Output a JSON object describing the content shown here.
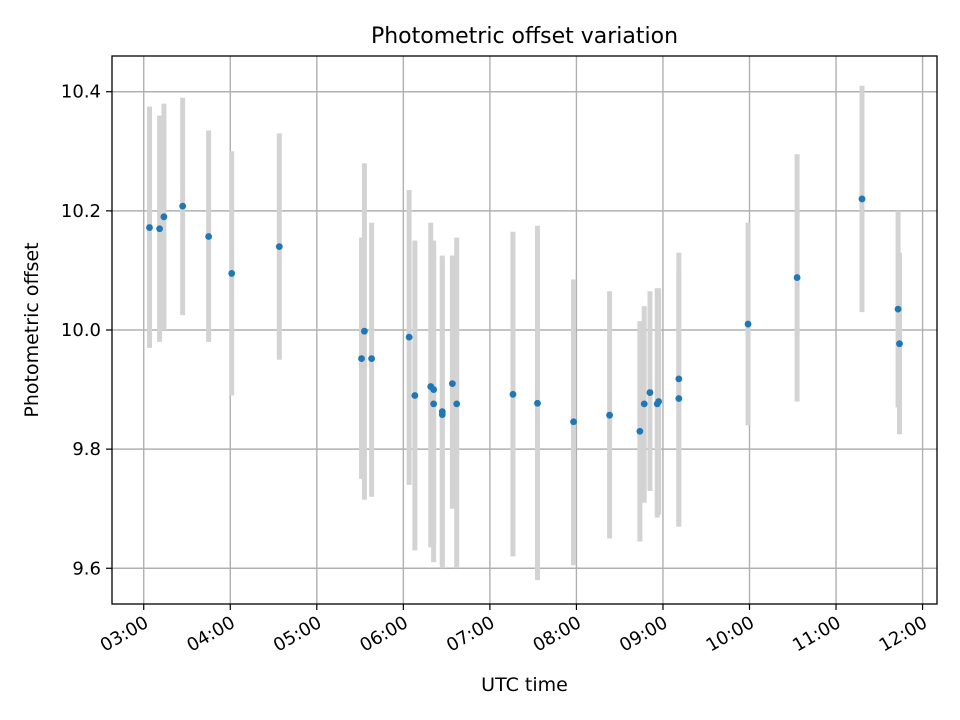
{
  "chart_data": {
    "type": "scatter",
    "title": "Photometric offset variation",
    "xlabel": "UTC time",
    "ylabel": "Photometric offset",
    "xlim": [
      "02:38",
      "12:10"
    ],
    "ylim": [
      9.54,
      10.46
    ],
    "x_ticks": [
      "03:00",
      "04:00",
      "05:00",
      "06:00",
      "07:00",
      "08:00",
      "09:00",
      "10:00",
      "11:00",
      "12:00"
    ],
    "y_ticks": [
      9.6,
      9.8,
      10.0,
      10.2,
      10.4
    ],
    "y_tick_labels": [
      "9.6",
      "9.8",
      "10.0",
      "10.2",
      "10.4"
    ],
    "grid": true,
    "colors": {
      "point": "#1f77b4",
      "errorbar": "#d3d3d3",
      "grid": "#b0b0b0"
    },
    "points": [
      {
        "time": "03:04",
        "y": 10.172,
        "lo": 9.97,
        "hi": 10.375
      },
      {
        "time": "03:11",
        "y": 10.17,
        "lo": 9.98,
        "hi": 10.36
      },
      {
        "time": "03:14",
        "y": 10.19,
        "lo": 10.0,
        "hi": 10.38
      },
      {
        "time": "03:27",
        "y": 10.208,
        "lo": 10.025,
        "hi": 10.39
      },
      {
        "time": "03:45",
        "y": 10.157,
        "lo": 9.98,
        "hi": 10.335
      },
      {
        "time": "04:01",
        "y": 10.095,
        "lo": 9.89,
        "hi": 10.3
      },
      {
        "time": "04:34",
        "y": 10.14,
        "lo": 9.95,
        "hi": 10.33
      },
      {
        "time": "05:31",
        "y": 9.952,
        "lo": 9.75,
        "hi": 10.155
      },
      {
        "time": "05:33",
        "y": 9.998,
        "lo": 9.715,
        "hi": 10.28
      },
      {
        "time": "05:38",
        "y": 9.952,
        "lo": 9.72,
        "hi": 10.18
      },
      {
        "time": "06:04",
        "y": 9.988,
        "lo": 9.74,
        "hi": 10.235
      },
      {
        "time": "06:08",
        "y": 9.89,
        "lo": 9.63,
        "hi": 10.15
      },
      {
        "time": "06:19",
        "y": 9.905,
        "lo": 9.635,
        "hi": 10.18
      },
      {
        "time": "06:21",
        "y": 9.9,
        "lo": 9.65,
        "hi": 10.15
      },
      {
        "time": "06:21",
        "y": 9.876,
        "lo": 9.61,
        "hi": 10.14
      },
      {
        "time": "06:27",
        "y": 9.858,
        "lo": 9.6,
        "hi": 10.125
      },
      {
        "time": "06:27",
        "y": 9.863,
        "lo": 9.605,
        "hi": 10.12
      },
      {
        "time": "06:34",
        "y": 9.91,
        "lo": 9.7,
        "hi": 10.125
      },
      {
        "time": "06:37",
        "y": 9.876,
        "lo": 9.6,
        "hi": 10.155
      },
      {
        "time": "07:16",
        "y": 9.892,
        "lo": 9.62,
        "hi": 10.165
      },
      {
        "time": "07:33",
        "y": 9.877,
        "lo": 9.58,
        "hi": 10.175
      },
      {
        "time": "07:58",
        "y": 9.846,
        "lo": 9.605,
        "hi": 10.085
      },
      {
        "time": "08:23",
        "y": 9.857,
        "lo": 9.65,
        "hi": 10.065
      },
      {
        "time": "08:44",
        "y": 9.83,
        "lo": 9.645,
        "hi": 10.015
      },
      {
        "time": "08:47",
        "y": 9.876,
        "lo": 9.71,
        "hi": 10.04
      },
      {
        "time": "08:51",
        "y": 9.895,
        "lo": 9.73,
        "hi": 10.065
      },
      {
        "time": "08:56",
        "y": 9.876,
        "lo": 9.685,
        "hi": 10.07
      },
      {
        "time": "08:57",
        "y": 9.88,
        "lo": 9.69,
        "hi": 10.07
      },
      {
        "time": "09:11",
        "y": 9.885,
        "lo": 9.67,
        "hi": 10.095
      },
      {
        "time": "09:11",
        "y": 9.918,
        "lo": 9.67,
        "hi": 10.13
      },
      {
        "time": "09:59",
        "y": 10.01,
        "lo": 9.84,
        "hi": 10.18
      },
      {
        "time": "10:33",
        "y": 10.088,
        "lo": 9.88,
        "hi": 10.295
      },
      {
        "time": "11:18",
        "y": 10.22,
        "lo": 10.03,
        "hi": 10.41
      },
      {
        "time": "11:43",
        "y": 10.035,
        "lo": 9.87,
        "hi": 10.2
      },
      {
        "time": "11:44",
        "y": 9.977,
        "lo": 9.825,
        "hi": 10.13
      }
    ]
  }
}
